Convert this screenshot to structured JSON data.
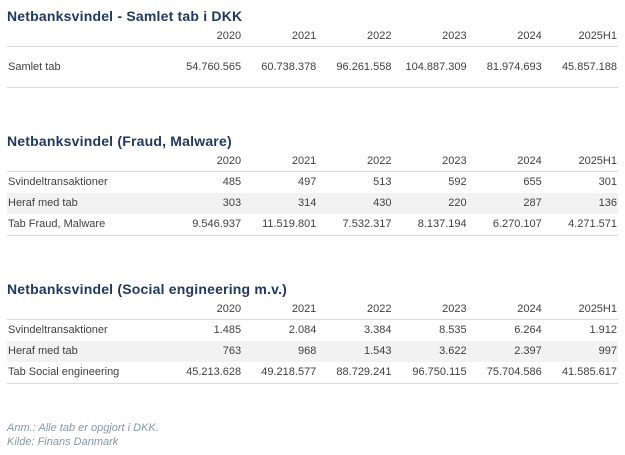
{
  "colors": {
    "title-color": "#1F3864",
    "text-color": "#404040",
    "stripe-color": "#F2F2F2",
    "line-color": "#D9D9D9",
    "footnote-color": "#8496B0",
    "page-bg": "#FFFFFF"
  },
  "tables": [
    {
      "title": "Netbanksvindel - Samlet tab i DKK",
      "columns": [
        "2020",
        "2021",
        "2022",
        "2023",
        "2024",
        "2025H1"
      ],
      "rows": [
        {
          "label": "Samlet tab",
          "values": [
            "54.760.565",
            "60.738.378",
            "96.261.558",
            "104.887.309",
            "81.974.693",
            "45.857.188"
          ],
          "striped": false,
          "tall": true
        }
      ]
    },
    {
      "title": "Netbanksvindel (Fraud, Malware)",
      "columns": [
        "2020",
        "2021",
        "2022",
        "2023",
        "2024",
        "2025H1"
      ],
      "rows": [
        {
          "label": "Svindeltransaktioner",
          "values": [
            "485",
            "497",
            "513",
            "592",
            "655",
            "301"
          ],
          "striped": false,
          "tall": false
        },
        {
          "label": "Heraf med tab",
          "values": [
            "303",
            "314",
            "430",
            "220",
            "287",
            "136"
          ],
          "striped": true,
          "tall": false
        },
        {
          "label": "Tab Fraud, Malware",
          "values": [
            "9.546.937",
            "11.519.801",
            "7.532.317",
            "8.137.194",
            "6.270.107",
            "4.271.571"
          ],
          "striped": false,
          "tall": false
        }
      ]
    },
    {
      "title": "Netbanksvindel (Social engineering m.v.)",
      "columns": [
        "2020",
        "2021",
        "2022",
        "2023",
        "2024",
        "2025H1"
      ],
      "rows": [
        {
          "label": "Svindeltransaktioner",
          "values": [
            "1.485",
            "2.084",
            "3.384",
            "8.535",
            "6.264",
            "1.912"
          ],
          "striped": false,
          "tall": false
        },
        {
          "label": "Heraf med tab",
          "values": [
            "763",
            "968",
            "1.543",
            "3.622",
            "2.397",
            "997"
          ],
          "striped": true,
          "tall": false
        },
        {
          "label": "Tab Social engineering",
          "values": [
            "45.213.628",
            "49.218.577",
            "88.729.241",
            "96.750.115",
            "75.704.586",
            "41.585.617"
          ],
          "striped": false,
          "tall": false
        }
      ]
    }
  ],
  "footnotes": [
    "Anm.: Alle tab er opgjort i DKK.",
    "Kilde: Finans Danmark"
  ]
}
